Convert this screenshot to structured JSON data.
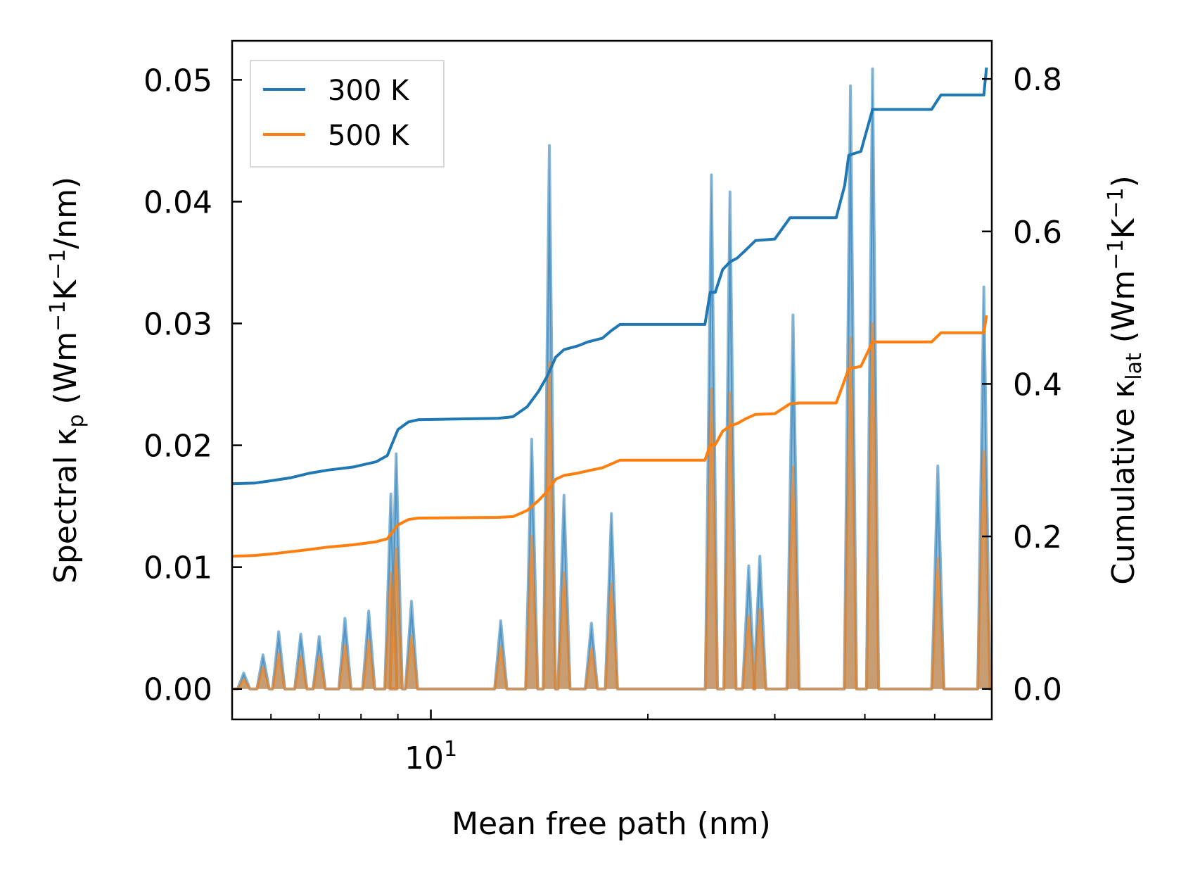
{
  "chart_data": {
    "type": "line",
    "xlabel": "Mean free path (nm)",
    "xscale": "log",
    "xlim": [
      5.3,
      60
    ],
    "x_tick_labels": [
      {
        "base": "10",
        "exp": "1",
        "value": 10
      }
    ],
    "left_axis": {
      "label_main": "Spectral κ",
      "label_sub": "p",
      "label_units_open": " (Wm",
      "label_units_exp1": "−1",
      "label_units_mid": "K",
      "label_units_exp2": "−1",
      "label_units_close": "/nm)",
      "ylim": [
        -0.0025,
        0.0532
      ],
      "ticks": [
        0.0,
        0.01,
        0.02,
        0.03,
        0.04,
        0.05
      ],
      "tick_labels": [
        "0.00",
        "0.01",
        "0.02",
        "0.03",
        "0.04",
        "0.05"
      ]
    },
    "right_axis": {
      "label_main": "Cumulative κ",
      "label_sub": "lat",
      "label_units_open": " (Wm",
      "label_units_exp1": "−1",
      "label_units_mid": "K",
      "label_units_exp2": "−1",
      "label_units_close": ")",
      "ylim": [
        -0.04,
        0.85
      ],
      "ticks": [
        0.0,
        0.2,
        0.4,
        0.6,
        0.8
      ],
      "tick_labels": [
        "0.0",
        "0.2",
        "0.4",
        "0.6",
        "0.8"
      ]
    },
    "legend": {
      "position": "top-left",
      "entries": [
        "300 K",
        "500 K"
      ]
    },
    "colors": {
      "300 K": "#1f77b4",
      "500 K": "#ff7f0e"
    },
    "spectral_peaks": [
      {
        "x": 5.5,
        "v300": 0.0013,
        "v500": 0.0008
      },
      {
        "x": 5.85,
        "v300": 0.0028,
        "v500": 0.0018
      },
      {
        "x": 6.15,
        "v300": 0.0047,
        "v500": 0.0029
      },
      {
        "x": 6.6,
        "v300": 0.0045,
        "v500": 0.0027
      },
      {
        "x": 7.0,
        "v300": 0.0043,
        "v500": 0.0027
      },
      {
        "x": 7.6,
        "v300": 0.0058,
        "v500": 0.0036
      },
      {
        "x": 8.2,
        "v300": 0.0064,
        "v500": 0.004
      },
      {
        "x": 8.8,
        "v300": 0.016,
        "v500": 0.0095
      },
      {
        "x": 8.95,
        "v300": 0.0193,
        "v500": 0.0115
      },
      {
        "x": 9.4,
        "v300": 0.0072,
        "v500": 0.0043
      },
      {
        "x": 12.5,
        "v300": 0.0056,
        "v500": 0.0035
      },
      {
        "x": 13.8,
        "v300": 0.0205,
        "v500": 0.0125
      },
      {
        "x": 14.6,
        "v300": 0.0446,
        "v500": 0.0268
      },
      {
        "x": 15.3,
        "v300": 0.0159,
        "v500": 0.0095
      },
      {
        "x": 16.7,
        "v300": 0.0054,
        "v500": 0.0033
      },
      {
        "x": 17.8,
        "v300": 0.0144,
        "v500": 0.0086
      },
      {
        "x": 24.5,
        "v300": 0.0422,
        "v500": 0.0246
      },
      {
        "x": 26.0,
        "v300": 0.0408,
        "v500": 0.0243
      },
      {
        "x": 27.6,
        "v300": 0.0101,
        "v500": 0.006
      },
      {
        "x": 28.6,
        "v300": 0.0109,
        "v500": 0.0065
      },
      {
        "x": 31.8,
        "v300": 0.0307,
        "v500": 0.0182
      },
      {
        "x": 38.2,
        "v300": 0.0495,
        "v500": 0.0288
      },
      {
        "x": 41.0,
        "v300": 0.0509,
        "v500": 0.03
      },
      {
        "x": 50.5,
        "v300": 0.0183,
        "v500": 0.0107
      },
      {
        "x": 58.5,
        "v300": 0.033,
        "v500": 0.0195
      }
    ],
    "cumulative": {
      "300 K": {
        "x": [
          5.3,
          5.7,
          6.0,
          6.4,
          6.8,
          7.2,
          7.8,
          8.4,
          8.7,
          9.0,
          9.3,
          9.6,
          12.4,
          13.0,
          13.6,
          14.1,
          14.5,
          14.9,
          15.3,
          16.0,
          16.5,
          17.3,
          17.8,
          18.3,
          24.0,
          24.4,
          24.8,
          25.4,
          26.0,
          26.6,
          27.3,
          28.2,
          30.0,
          31.5,
          32.5,
          36.5,
          37.5,
          38.0,
          39.5,
          41.0,
          42.0,
          44.0,
          49.5,
          51.0,
          56.5,
          58.5,
          59.0
        ],
        "y": [
          0.269,
          0.27,
          0.273,
          0.277,
          0.283,
          0.287,
          0.291,
          0.298,
          0.306,
          0.34,
          0.35,
          0.353,
          0.355,
          0.357,
          0.37,
          0.39,
          0.41,
          0.435,
          0.445,
          0.45,
          0.455,
          0.46,
          0.47,
          0.478,
          0.478,
          0.52,
          0.52,
          0.55,
          0.56,
          0.565,
          0.575,
          0.588,
          0.59,
          0.618,
          0.618,
          0.618,
          0.66,
          0.7,
          0.705,
          0.76,
          0.76,
          0.76,
          0.76,
          0.779,
          0.779,
          0.779,
          0.815
        ]
      },
      "500 K": {
        "x": [
          5.3,
          5.7,
          6.0,
          6.4,
          6.8,
          7.2,
          7.8,
          8.4,
          8.7,
          9.0,
          9.3,
          9.6,
          12.4,
          13.0,
          13.6,
          14.1,
          14.5,
          14.9,
          15.3,
          16.0,
          16.5,
          17.3,
          17.8,
          18.3,
          24.0,
          24.4,
          24.8,
          25.4,
          26.0,
          26.6,
          27.3,
          28.2,
          30.0,
          31.5,
          32.5,
          36.5,
          37.5,
          38.0,
          39.5,
          41.0,
          42.0,
          44.0,
          49.5,
          51.0,
          56.5,
          58.5,
          59.0
        ],
        "y": [
          0.174,
          0.175,
          0.177,
          0.18,
          0.183,
          0.186,
          0.189,
          0.193,
          0.197,
          0.215,
          0.222,
          0.224,
          0.225,
          0.226,
          0.234,
          0.247,
          0.259,
          0.275,
          0.28,
          0.283,
          0.286,
          0.29,
          0.295,
          0.3,
          0.3,
          0.32,
          0.32,
          0.338,
          0.345,
          0.348,
          0.354,
          0.36,
          0.361,
          0.374,
          0.375,
          0.375,
          0.405,
          0.42,
          0.423,
          0.455,
          0.455,
          0.455,
          0.455,
          0.467,
          0.467,
          0.467,
          0.49
        ]
      }
    }
  }
}
